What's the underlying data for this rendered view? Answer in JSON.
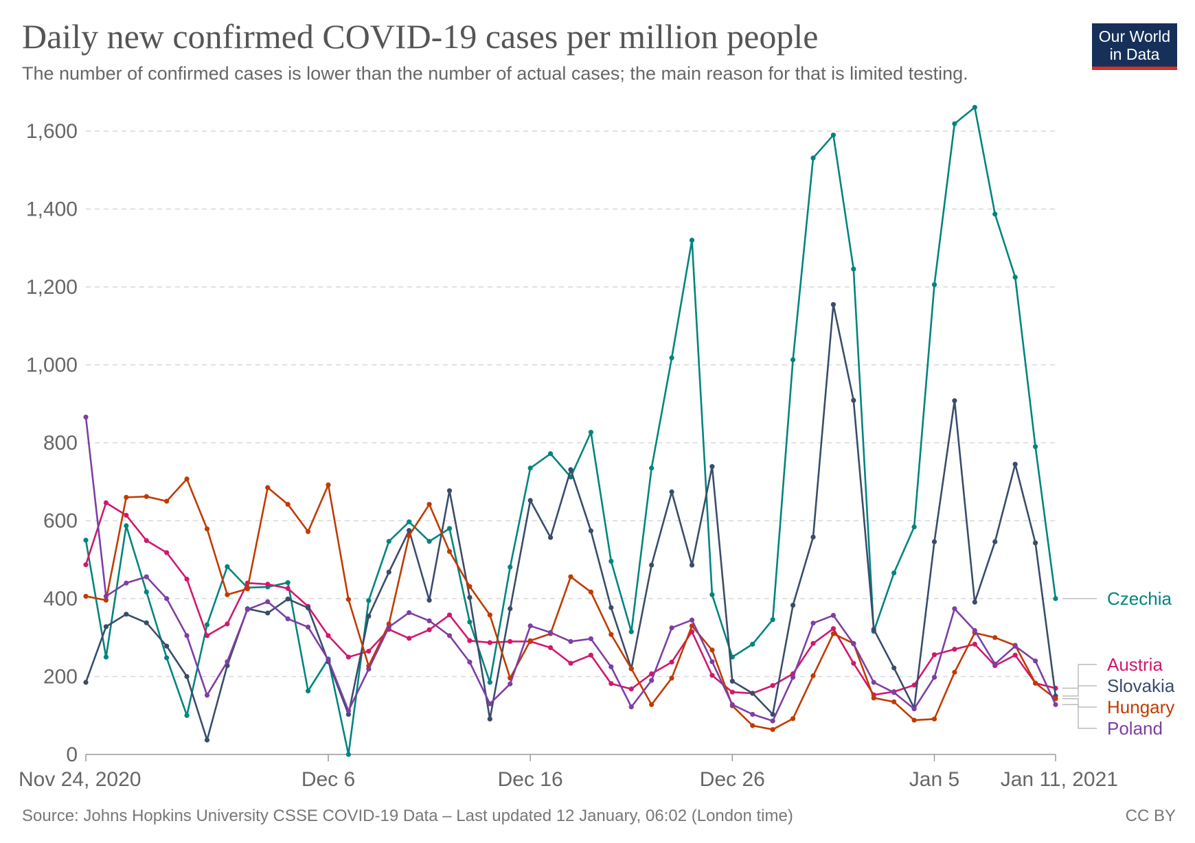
{
  "title": "Daily new confirmed COVID-19 cases per million people",
  "subtitle": "The number of confirmed cases is lower than the number of actual cases; the main reason for that is limited testing.",
  "logo": {
    "line1": "Our World",
    "line2": "in Data"
  },
  "source": "Source: Johns Hopkins University CSSE COVID-19 Data – Last updated 12 January, 06:02 (London time)",
  "license": "CC BY",
  "chart_data": {
    "type": "line",
    "title": "Daily new confirmed COVID-19 cases per million people",
    "xlabel": "",
    "ylabel": "",
    "ylim": [
      0,
      1600
    ],
    "yticks": [
      0,
      200,
      400,
      600,
      800,
      1000,
      1200,
      1400,
      1600
    ],
    "ytick_labels": [
      "0",
      "200",
      "400",
      "600",
      "800",
      "1,000",
      "1,200",
      "1,400",
      "1,600"
    ],
    "x_start": "2020-11-24",
    "x_end": "2021-01-11",
    "xticks": [
      {
        "day": 0,
        "label": "Nov 24, 2020"
      },
      {
        "day": 12,
        "label": "Dec 6"
      },
      {
        "day": 22,
        "label": "Dec 16"
      },
      {
        "day": 32,
        "label": "Dec 26"
      },
      {
        "day": 42,
        "label": "Jan 5"
      },
      {
        "day": 48,
        "label": "Jan 11, 2021"
      }
    ],
    "grid": true,
    "series": [
      {
        "name": "Czechia",
        "color": "#00847e",
        "values": [
          550,
          250,
          587,
          417,
          248,
          100,
          333,
          482,
          428,
          430,
          441,
          163,
          245,
          0,
          395,
          547,
          597,
          547,
          580,
          340,
          185,
          481,
          735,
          772,
          712,
          827,
          496,
          315,
          735,
          1018,
          1320,
          410,
          250,
          283,
          346,
          1013,
          1531,
          1590,
          1246,
          316,
          466,
          584,
          1206,
          1619,
          1661,
          1387,
          1225,
          790,
          400
        ]
      },
      {
        "name": "Austria",
        "color": "#d1186d",
        "values": [
          487,
          646,
          614,
          549,
          518,
          450,
          305,
          335,
          440,
          437,
          426,
          380,
          305,
          250,
          265,
          321,
          298,
          320,
          358,
          292,
          287,
          290,
          290,
          274,
          234,
          255,
          182,
          168,
          207,
          237,
          315,
          203,
          160,
          157,
          177,
          207,
          285,
          323,
          234,
          153,
          161,
          178,
          256,
          270,
          283,
          228,
          255,
          183,
          170
        ]
      },
      {
        "name": "Slovakia",
        "color": "#3a4c6b",
        "values": [
          185,
          328,
          360,
          338,
          278,
          200,
          37,
          228,
          374,
          363,
          399,
          376,
          238,
          103,
          355,
          468,
          575,
          396,
          677,
          403,
          91,
          374,
          652,
          557,
          731,
          574,
          377,
          220,
          486,
          674,
          486,
          739,
          188,
          157,
          103,
          383,
          558,
          1155,
          909,
          321,
          222,
          119,
          546,
          908,
          391,
          546,
          745,
          543,
          150
        ]
      },
      {
        "name": "Hungary",
        "color": "#bf3b00",
        "values": [
          406,
          396,
          660,
          662,
          650,
          707,
          579,
          410,
          425,
          685,
          642,
          572,
          692,
          398,
          227,
          335,
          562,
          642,
          521,
          431,
          358,
          196,
          292,
          310,
          456,
          417,
          308,
          220,
          128,
          196,
          330,
          268,
          125,
          74,
          64,
          92,
          202,
          310,
          285,
          145,
          135,
          88,
          91,
          211,
          312,
          300,
          280,
          183,
          143
        ]
      },
      {
        "name": "Poland",
        "color": "#7d3fa3",
        "values": [
          866,
          406,
          440,
          456,
          400,
          305,
          152,
          238,
          372,
          392,
          348,
          327,
          243,
          112,
          219,
          327,
          364,
          343,
          305,
          237,
          130,
          181,
          330,
          313,
          290,
          297,
          225,
          122,
          190,
          325,
          345,
          238,
          128,
          103,
          86,
          198,
          337,
          357,
          284,
          185,
          159,
          117,
          198,
          374,
          318,
          232,
          278,
          240,
          128
        ]
      }
    ]
  }
}
